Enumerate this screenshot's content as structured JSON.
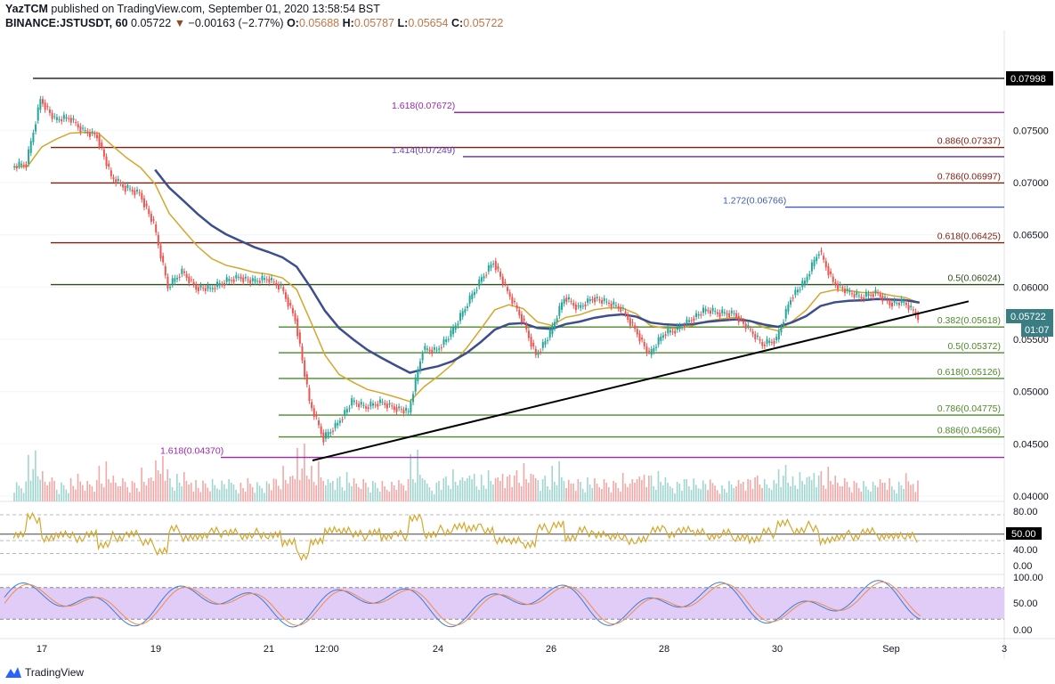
{
  "header": {
    "author": "YazTCM",
    "published": "published on TradingView.com, September 01, 2020 13:58:54 BST",
    "symbol": "BINANCE:JSTUSDT, 60",
    "last": "0.05722",
    "change": "−0.00163 (−2.77%)",
    "o_label": "O:",
    "o": "0.05688",
    "h_label": "H:",
    "h": "0.05787",
    "l_label": "L:",
    "l": "0.05654",
    "c_label": "C:",
    "c": "0.05722"
  },
  "price_axis": {
    "ticks": [
      "0.07500",
      "0.07000",
      "0.06500",
      "0.06000",
      "0.05500",
      "0.05000",
      "0.04500",
      "0.04000"
    ],
    "high_label": "0.07998",
    "last_label": "0.05722",
    "countdown": "01:07"
  },
  "rsi_axis": {
    "ticks": [
      "80.00",
      "40.00",
      "0.00"
    ],
    "level_label": "50.00"
  },
  "stoch_axis": {
    "ticks": [
      "100.00",
      "50.00",
      "0.00"
    ]
  },
  "x_axis": {
    "ticks": [
      "17",
      "19",
      "21",
      "12:00",
      "24",
      "26",
      "28",
      "30",
      "Sep",
      "3"
    ]
  },
  "footer": {
    "brand": "TradingView"
  },
  "colors": {
    "up": "#26a69a",
    "down": "#ef5350",
    "ma_fast": "#d4a72c",
    "ma_slow": "#3d4e8f",
    "rsi": "#d4a72c",
    "stoch_k": "#3b7dd8",
    "stoch_d": "#f08a4b",
    "stoch_band": "#e1ccf7",
    "trendline": "#000000"
  },
  "chart_data": {
    "type": "candlestick",
    "title": "",
    "ylim": [
      0.04,
      0.08
    ],
    "y_scale": "linear",
    "interval": "60",
    "closes": [
      [
        "Aug 16 12:00",
        0.0715
      ],
      [
        "Aug 16 18:00",
        0.0718
      ],
      [
        "Aug 17 00:00",
        0.078
      ],
      [
        "Aug 17 06:00",
        0.076
      ],
      [
        "Aug 17 12:00",
        0.0762
      ],
      [
        "Aug 17 18:00",
        0.075
      ],
      [
        "Aug 18 00:00",
        0.0745
      ],
      [
        "Aug 18 06:00",
        0.0705
      ],
      [
        "Aug 18 12:00",
        0.0695
      ],
      [
        "Aug 18 18:00",
        0.069
      ],
      [
        "Aug 19 00:00",
        0.066
      ],
      [
        "Aug 19 06:00",
        0.06
      ],
      [
        "Aug 19 12:00",
        0.0615
      ],
      [
        "Aug 19 18:00",
        0.06
      ],
      [
        "Aug 20 00:00",
        0.0598
      ],
      [
        "Aug 20 06:00",
        0.0605
      ],
      [
        "Aug 20 12:00",
        0.061
      ],
      [
        "Aug 20 18:00",
        0.0605
      ],
      [
        "Aug 21 00:00",
        0.0608
      ],
      [
        "Aug 21 06:00",
        0.06
      ],
      [
        "Aug 21 12:00",
        0.057
      ],
      [
        "Aug 21 18:00",
        0.049
      ],
      [
        "Aug 22 00:00",
        0.0455
      ],
      [
        "Aug 22 06:00",
        0.047
      ],
      [
        "Aug 22 12:00",
        0.049
      ],
      [
        "Aug 22 18:00",
        0.0485
      ],
      [
        "Aug 23 00:00",
        0.049
      ],
      [
        "Aug 23 06:00",
        0.0485
      ],
      [
        "Aug 23 12:00",
        0.048
      ],
      [
        "Aug 23 18:00",
        0.054
      ],
      [
        "Aug 24 00:00",
        0.054
      ],
      [
        "Aug 24 06:00",
        0.0555
      ],
      [
        "Aug 24 12:00",
        0.058
      ],
      [
        "Aug 24 18:00",
        0.0605
      ],
      [
        "Aug 25 00:00",
        0.0625
      ],
      [
        "Aug 25 06:00",
        0.0595
      ],
      [
        "Aug 25 12:00",
        0.057
      ],
      [
        "Aug 25 18:00",
        0.0535
      ],
      [
        "Aug 26 00:00",
        0.0555
      ],
      [
        "Aug 26 06:00",
        0.059
      ],
      [
        "Aug 26 12:00",
        0.058
      ],
      [
        "Aug 26 18:00",
        0.059
      ],
      [
        "Aug 27 00:00",
        0.0585
      ],
      [
        "Aug 27 06:00",
        0.058
      ],
      [
        "Aug 27 12:00",
        0.056
      ],
      [
        "Aug 27 18:00",
        0.0535
      ],
      [
        "Aug 28 00:00",
        0.0555
      ],
      [
        "Aug 28 06:00",
        0.056
      ],
      [
        "Aug 28 12:00",
        0.057
      ],
      [
        "Aug 28 18:00",
        0.0578
      ],
      [
        "Aug 29 00:00",
        0.0575
      ],
      [
        "Aug 29 06:00",
        0.0575
      ],
      [
        "Aug 29 12:00",
        0.056
      ],
      [
        "Aug 29 18:00",
        0.0545
      ],
      [
        "Aug 30 00:00",
        0.055
      ],
      [
        "Aug 30 06:00",
        0.059
      ],
      [
        "Aug 30 12:00",
        0.0605
      ],
      [
        "Aug 30 18:00",
        0.0635
      ],
      [
        "Aug 31 00:00",
        0.0605
      ],
      [
        "Aug 31 06:00",
        0.0595
      ],
      [
        "Aug 31 12:00",
        0.059
      ],
      [
        "Aug 31 18:00",
        0.0595
      ],
      [
        "Sep 1 00:00",
        0.0585
      ],
      [
        "Sep 1 06:00",
        0.0585
      ],
      [
        "Sep 1 12:00",
        0.05722
      ]
    ],
    "levels": [
      {
        "label": "",
        "value": 0.07998,
        "color": "#000000"
      },
      {
        "label": "1.618(0.07672)",
        "value": 0.07672,
        "color": "#9c27b0"
      },
      {
        "label": "0.886(0.07337)",
        "value": 0.07337,
        "color": "#7b1f0f"
      },
      {
        "label": "1.414(0.07249)",
        "value": 0.07249,
        "color": "#6a3fc4"
      },
      {
        "label": "0.786(0.06997)",
        "value": 0.06997,
        "color": "#7b1f0f"
      },
      {
        "label": "1.272(0.06766)",
        "value": 0.06766,
        "color": "#3b5db8"
      },
      {
        "label": "0.618(0.06425)",
        "value": 0.06425,
        "color": "#7b1f0f"
      },
      {
        "label": "0.5(0.06024)",
        "value": 0.06024,
        "color": "#2e4d1a"
      },
      {
        "label": "0.382(0.05618)",
        "value": 0.05618,
        "color": "#4c8a2a"
      },
      {
        "label": "0.5(0.05372)",
        "value": 0.05372,
        "color": "#4c8a2a"
      },
      {
        "label": "0.618(0.05126)",
        "value": 0.05126,
        "color": "#4c8a2a"
      },
      {
        "label": "0.786(0.04775)",
        "value": 0.04775,
        "color": "#4c8a2a"
      },
      {
        "label": "0.886(0.04566)",
        "value": 0.04566,
        "color": "#4c8a2a"
      },
      {
        "label": "1.618(0.04370)",
        "value": 0.0437,
        "color": "#9c27b0"
      }
    ],
    "trendline": {
      "from": [
        "Aug 22 00:00",
        0.0437
      ],
      "to": [
        "Sep 1 12:00",
        0.0575
      ]
    },
    "rsi_levels": [
      80,
      50,
      40,
      0
    ],
    "stoch_band": [
      20,
      80
    ]
  }
}
